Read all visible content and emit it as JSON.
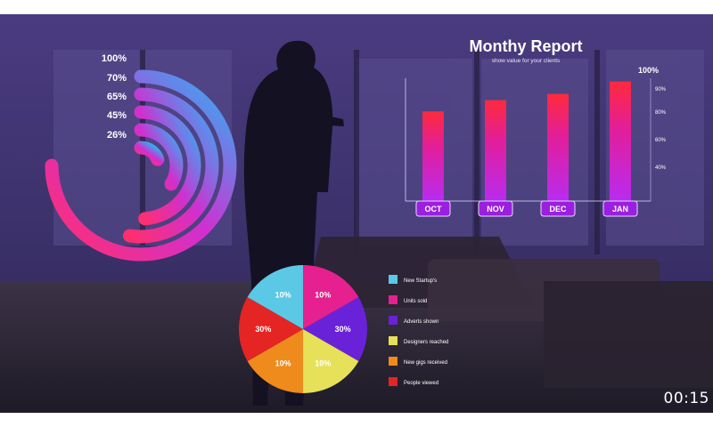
{
  "video": {
    "timecode": "00:15"
  },
  "radial_chart": {
    "labels": [
      "100%",
      "70%",
      "65%",
      "45%",
      "26%"
    ],
    "values": [
      100,
      70,
      65,
      45,
      26
    ]
  },
  "bar_chart": {
    "title": "Monthy Report",
    "subtitle": "show value for your clients",
    "y_max_label": "100%",
    "y_ticks": [
      "90%",
      "80%",
      "60%",
      "40%"
    ],
    "categories": [
      "OCT",
      "NOV",
      "DEC",
      "JAN"
    ],
    "values": [
      72,
      81,
      86,
      96
    ]
  },
  "pie_chart": {
    "slices": [
      {
        "label": "10%",
        "value": 10,
        "color": "#5bc8e6",
        "legend": "New Startup's"
      },
      {
        "label": "10%",
        "value": 10,
        "color": "#e6208e",
        "legend": "Units sold"
      },
      {
        "label": "30%",
        "value": 30,
        "color": "#6a22d8",
        "legend": "Adverts shown"
      },
      {
        "label": "10%",
        "value": 10,
        "color": "#e7e159",
        "legend": "Designers reached"
      },
      {
        "label": "10%",
        "value": 10,
        "color": "#ef8a1c",
        "legend": "New gigs received"
      },
      {
        "label": "30%",
        "value": 30,
        "color": "#e52424",
        "legend": "People viewed"
      }
    ]
  },
  "chart_data": [
    {
      "type": "pie",
      "labels": [
        "New Startup's",
        "Units sold",
        "Adverts shown",
        "Designers reached",
        "New gigs received",
        "People viewed"
      ],
      "values": [
        10,
        10,
        30,
        10,
        10,
        30
      ]
    },
    {
      "type": "bar",
      "title": "Monthy Report",
      "categories": [
        "OCT",
        "NOV",
        "DEC",
        "JAN"
      ],
      "values": [
        72,
        81,
        86,
        96
      ]
    },
    {
      "type": "bar",
      "labels": [
        "100%",
        "70%",
        "65%",
        "45%",
        "26%"
      ],
      "values": [
        100,
        70,
        65,
        45,
        26
      ]
    }
  ]
}
